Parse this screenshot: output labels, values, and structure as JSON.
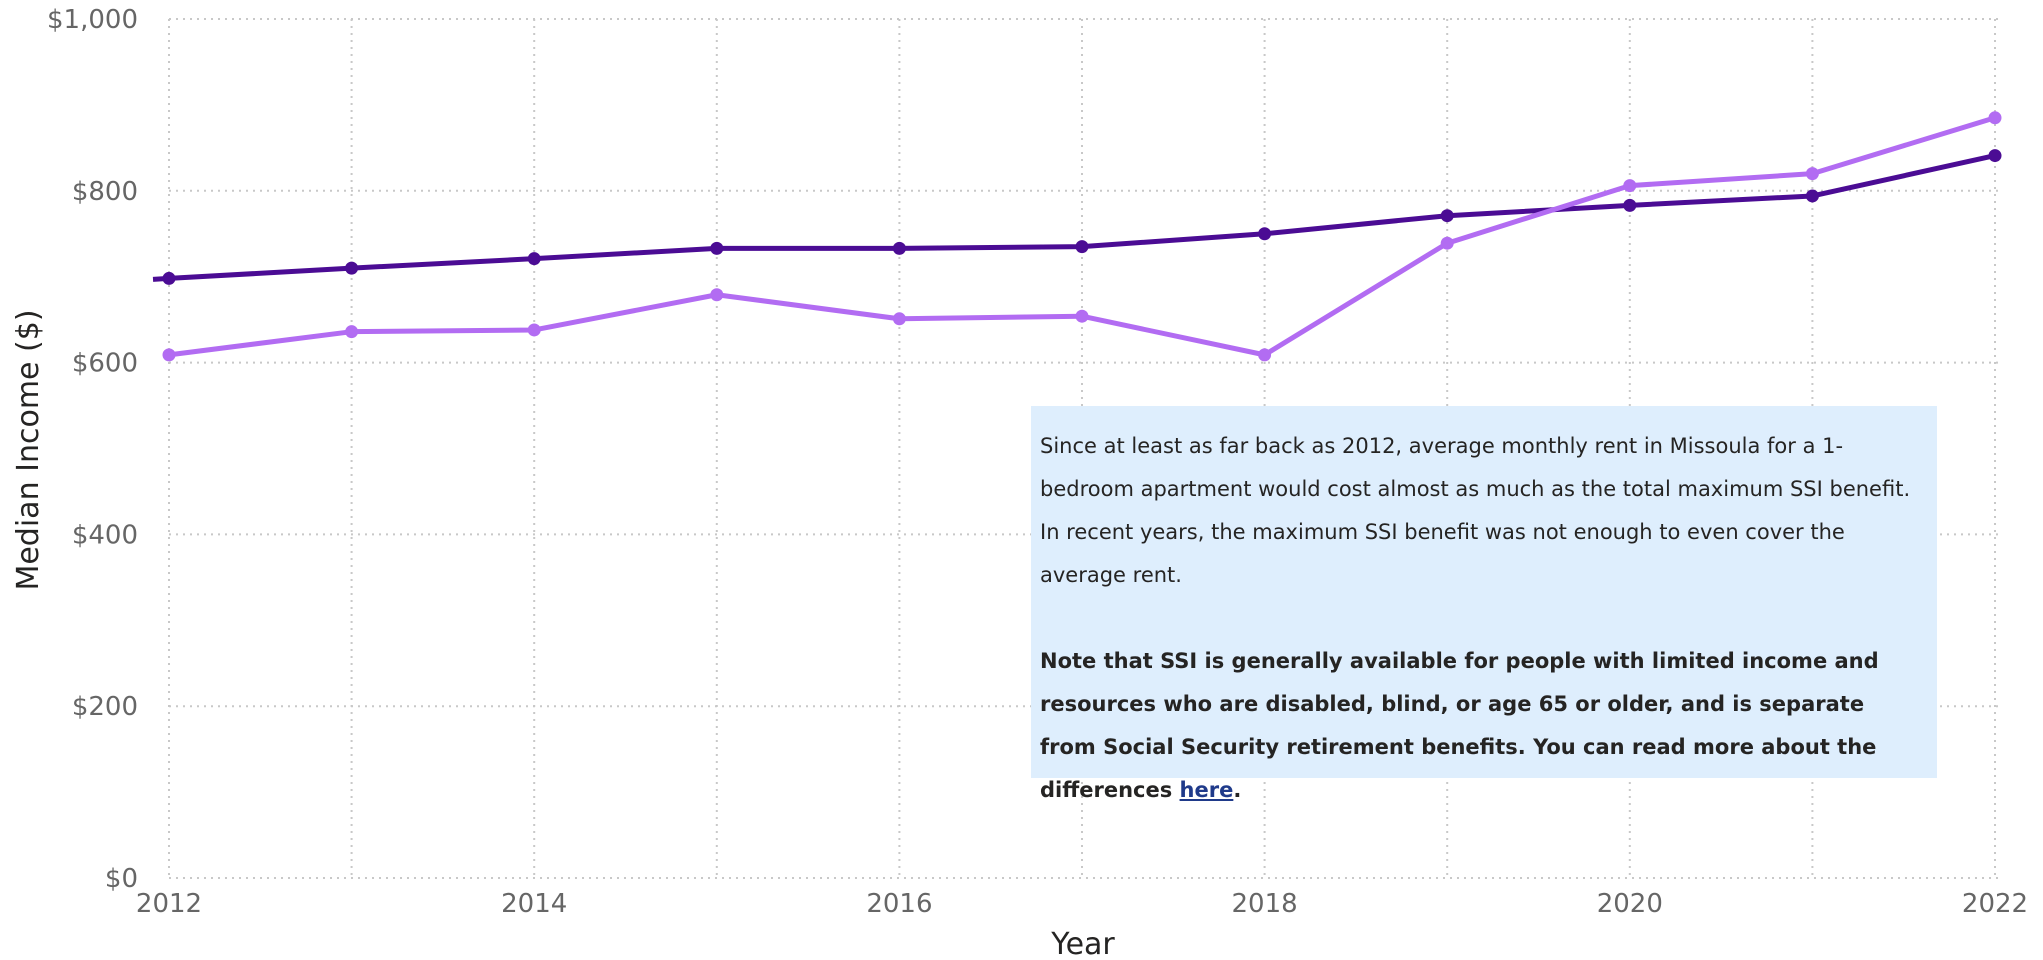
{
  "chart_data": {
    "type": "line",
    "xlabel": "Year",
    "ylabel": "Median Income ($)",
    "x": [
      2012,
      2013,
      2014,
      2015,
      2016,
      2017,
      2018,
      2019,
      2020,
      2021,
      2022
    ],
    "xticks": [
      "2012",
      "2014",
      "2016",
      "2018",
      "2020",
      "2022"
    ],
    "yticks": [
      "$0",
      "$200",
      "$400",
      "$600",
      "$800",
      "$1,000"
    ],
    "ylim": [
      0,
      1000
    ],
    "xlim": [
      2012,
      2022
    ],
    "grid": true,
    "series": [
      {
        "color": "#4b0c94",
        "values": [
          698,
          710,
          721,
          733,
          733,
          735,
          750,
          771,
          783,
          794,
          841
        ]
      },
      {
        "color": "#b26cf2",
        "values": [
          609,
          636,
          638,
          679,
          651,
          654,
          609,
          739,
          806,
          820,
          885
        ]
      }
    ]
  },
  "note": {
    "paragraph1": "Since at least as far back as 2012, average monthly rent in Missoula for a 1-bedroom apartment would cost almost as much as the total maximum SSI benefit. In recent years, the maximum SSI benefit was not enough to even cover the average rent.",
    "paragraph2": "Note that SSI is generally available for people with limited income and resources who are disabled, blind, or age 65 or older, and is separate from Social Security retirement benefits. You can read more about the differences ",
    "link_text": "here",
    "paragraph2_end": "."
  }
}
